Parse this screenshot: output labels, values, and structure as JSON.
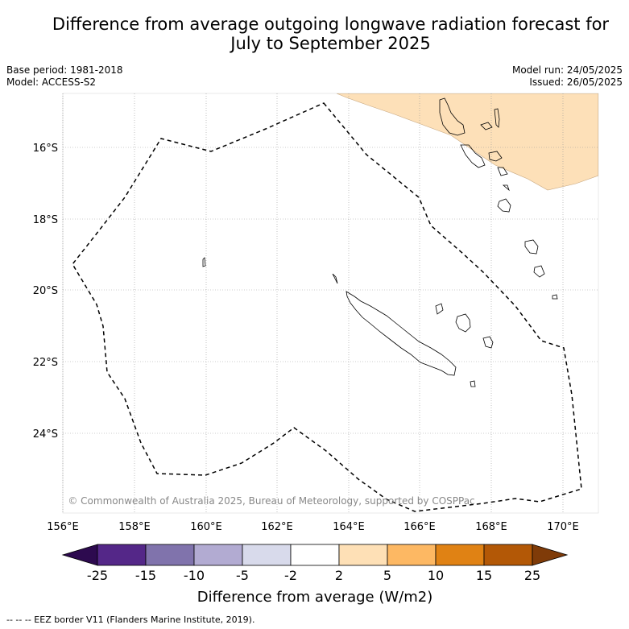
{
  "title_line1": "Difference from average outgoing longwave radiation forecast for",
  "title_line2": "July to September 2025",
  "meta_left": [
    "Base period: 1981-2018",
    "Model: ACCESS-S2"
  ],
  "meta_right": [
    "Model run: 24/05/2025",
    "Issued: 26/05/2025"
  ],
  "map": {
    "lat_labels": [
      "16°S",
      "18°S",
      "20°S",
      "22°S",
      "24°S"
    ],
    "lon_labels": [
      "156°E",
      "158°E",
      "160°E",
      "162°E",
      "164°E",
      "166°E",
      "168°E",
      "170°E"
    ],
    "copyright": "© Commonwealth of Australia 2025, Bureau of Meteorology, supported by COSPPac",
    "anomaly_fill_color": "#fde0b8"
  },
  "colorbar": {
    "ticks": [
      "-25",
      "-15",
      "-10",
      "-5",
      "-2",
      "2",
      "5",
      "10",
      "15",
      "25"
    ],
    "colors": [
      "#2d0a4f",
      "#542788",
      "#8073ac",
      "#b2abd2",
      "#d8daeb",
      "#ffffff",
      "#fee0b6",
      "#fdb863",
      "#e08214",
      "#b35806",
      "#7f3b08"
    ],
    "label": "Difference from average (W/m2)"
  },
  "footer": "--  --  -- EEZ border V11 (Flanders Marine Institute, 2019)."
}
